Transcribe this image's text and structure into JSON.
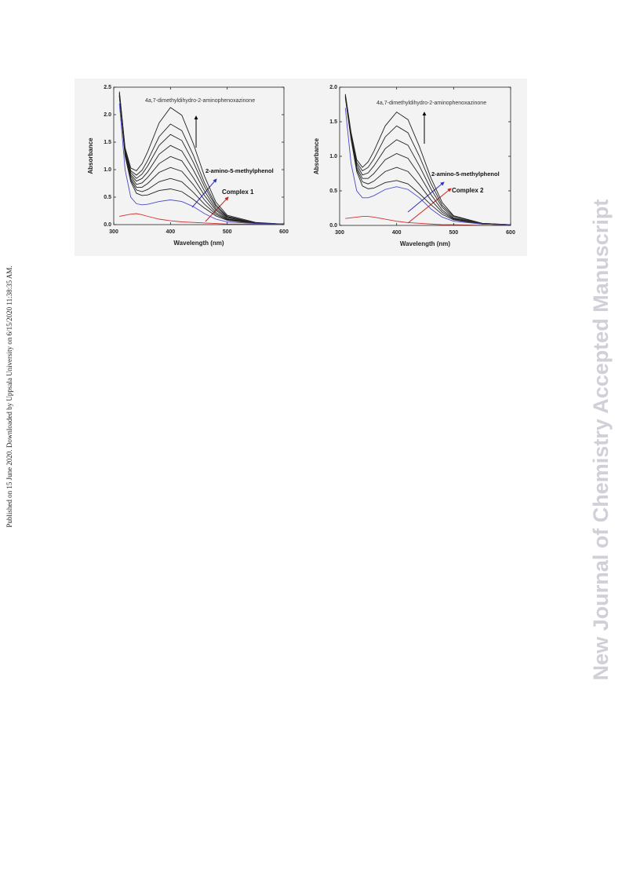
{
  "side_note": "Published on 15 June 2020. Downloaded by Uppsala University on 6/15/2020 11:38:35 AM.",
  "watermark": "New Journal of Chemistry Accepted Manuscript",
  "chart_data": [
    {
      "type": "line",
      "xlabel": "Wavelength (nm)",
      "ylabel": "Absorbance",
      "annotations": [
        "4a,7-dimethyldihydro-2-aminophenoxazinone",
        "2-amino-5-methylphenol",
        "Complex 1"
      ],
      "x": [
        310,
        320,
        330,
        340,
        350,
        360,
        380,
        400,
        420,
        440,
        460,
        480,
        500,
        550,
        600
      ],
      "xlim": [
        300,
        600
      ],
      "xticks": [
        300,
        400,
        500,
        600
      ],
      "ylim": [
        0,
        2.5
      ],
      "yticks": [
        {
          "value": 0,
          "label": "0.0"
        },
        0.5,
        {
          "value": 1,
          "label": "1.0"
        },
        1.5,
        {
          "value": 2,
          "label": "2.0"
        },
        2.5
      ],
      "series": [
        {
          "color": "#222222",
          "values": [
            2.33,
            1.25,
            0.78,
            0.57,
            0.53,
            0.54,
            0.62,
            0.65,
            0.6,
            0.46,
            0.3,
            0.16,
            0.08,
            0.02,
            0.01
          ]
        },
        {
          "color": "#222222",
          "values": [
            2.34,
            1.27,
            0.81,
            0.63,
            0.6,
            0.64,
            0.78,
            0.84,
            0.78,
            0.59,
            0.37,
            0.19,
            0.09,
            0.02,
            0.01
          ]
        },
        {
          "color": "#222222",
          "values": [
            2.35,
            1.29,
            0.84,
            0.68,
            0.68,
            0.75,
            0.95,
            1.04,
            0.97,
            0.73,
            0.45,
            0.22,
            0.1,
            0.02,
            0.01
          ]
        },
        {
          "color": "#222222",
          "values": [
            2.36,
            1.31,
            0.88,
            0.73,
            0.76,
            0.86,
            1.11,
            1.24,
            1.16,
            0.86,
            0.53,
            0.26,
            0.11,
            0.03,
            0.01
          ]
        },
        {
          "color": "#222222",
          "values": [
            2.38,
            1.33,
            0.91,
            0.79,
            0.84,
            0.96,
            1.28,
            1.44,
            1.34,
            1.0,
            0.61,
            0.29,
            0.13,
            0.03,
            0.01
          ]
        },
        {
          "color": "#222222",
          "values": [
            2.39,
            1.35,
            0.95,
            0.84,
            0.92,
            1.07,
            1.44,
            1.64,
            1.53,
            1.14,
            0.69,
            0.33,
            0.14,
            0.03,
            0.01
          ]
        },
        {
          "color": "#222222",
          "values": [
            2.4,
            1.37,
            0.98,
            0.9,
            0.99,
            1.17,
            1.6,
            1.83,
            1.71,
            1.27,
            0.76,
            0.36,
            0.15,
            0.03,
            0.01
          ]
        },
        {
          "color": "#222222",
          "values": [
            2.42,
            1.4,
            1.03,
            0.98,
            1.11,
            1.33,
            1.85,
            2.13,
            1.99,
            1.48,
            0.88,
            0.41,
            0.17,
            0.04,
            0.01
          ]
        },
        {
          "color": "#4a4ac8",
          "values": [
            2.2,
            1.0,
            0.5,
            0.38,
            0.36,
            0.37,
            0.42,
            0.45,
            0.42,
            0.33,
            0.2,
            0.1,
            0.05,
            0.02,
            0.01
          ]
        },
        {
          "color": "#d03030",
          "values": [
            0.15,
            0.17,
            0.19,
            0.2,
            0.18,
            0.15,
            0.1,
            0.07,
            0.05,
            0.04,
            0.03,
            0.02,
            0.01,
            0.01,
            0
          ]
        }
      ]
    },
    {
      "type": "line",
      "xlabel": "Wavelength (nm)",
      "ylabel": "Absorbance",
      "annotations": [
        "4a,7-dimethyldihydro-2-aminophenoxazinone",
        "2-amino-5-methylphenol",
        "Complex 2"
      ],
      "x": [
        310,
        320,
        330,
        340,
        350,
        360,
        380,
        400,
        420,
        440,
        460,
        480,
        500,
        550,
        600
      ],
      "xlim": [
        300,
        600
      ],
      "xticks": [
        300,
        400,
        500,
        600
      ],
      "ylim": [
        0,
        2
      ],
      "yticks": [
        {
          "value": 0,
          "label": "0.0"
        },
        0.5,
        {
          "value": 1,
          "label": "1.0"
        },
        1.5,
        {
          "value": 2,
          "label": "2.0"
        }
      ],
      "series": [
        {
          "color": "#222222",
          "values": [
            1.85,
            1.25,
            0.78,
            0.57,
            0.53,
            0.54,
            0.62,
            0.65,
            0.6,
            0.46,
            0.3,
            0.16,
            0.08,
            0.02,
            0.01
          ]
        },
        {
          "color": "#222222",
          "values": [
            1.86,
            1.27,
            0.81,
            0.63,
            0.6,
            0.64,
            0.78,
            0.84,
            0.78,
            0.59,
            0.37,
            0.19,
            0.09,
            0.02,
            0.01
          ]
        },
        {
          "color": "#222222",
          "values": [
            1.87,
            1.29,
            0.84,
            0.68,
            0.68,
            0.75,
            0.95,
            1.04,
            0.97,
            0.73,
            0.45,
            0.22,
            0.1,
            0.02,
            0.01
          ]
        },
        {
          "color": "#222222",
          "values": [
            1.88,
            1.31,
            0.88,
            0.73,
            0.76,
            0.86,
            1.11,
            1.24,
            1.16,
            0.86,
            0.53,
            0.26,
            0.11,
            0.03,
            0.01
          ]
        },
        {
          "color": "#222222",
          "values": [
            1.89,
            1.33,
            0.91,
            0.79,
            0.84,
            0.96,
            1.28,
            1.44,
            1.34,
            1.0,
            0.61,
            0.29,
            0.13,
            0.03,
            0.01
          ]
        },
        {
          "color": "#222222",
          "values": [
            1.9,
            1.35,
            0.95,
            0.84,
            0.92,
            1.07,
            1.44,
            1.64,
            1.53,
            1.14,
            0.69,
            0.33,
            0.14,
            0.03,
            0.01
          ]
        },
        {
          "color": "#4a4ac8",
          "values": [
            1.7,
            0.9,
            0.5,
            0.4,
            0.4,
            0.43,
            0.52,
            0.56,
            0.52,
            0.4,
            0.24,
            0.12,
            0.06,
            0.02,
            0.01
          ]
        },
        {
          "color": "#d03030",
          "values": [
            0.1,
            0.11,
            0.12,
            0.13,
            0.13,
            0.12,
            0.09,
            0.06,
            0.04,
            0.03,
            0.02,
            0.01,
            0.01,
            0,
            0
          ]
        }
      ]
    }
  ]
}
